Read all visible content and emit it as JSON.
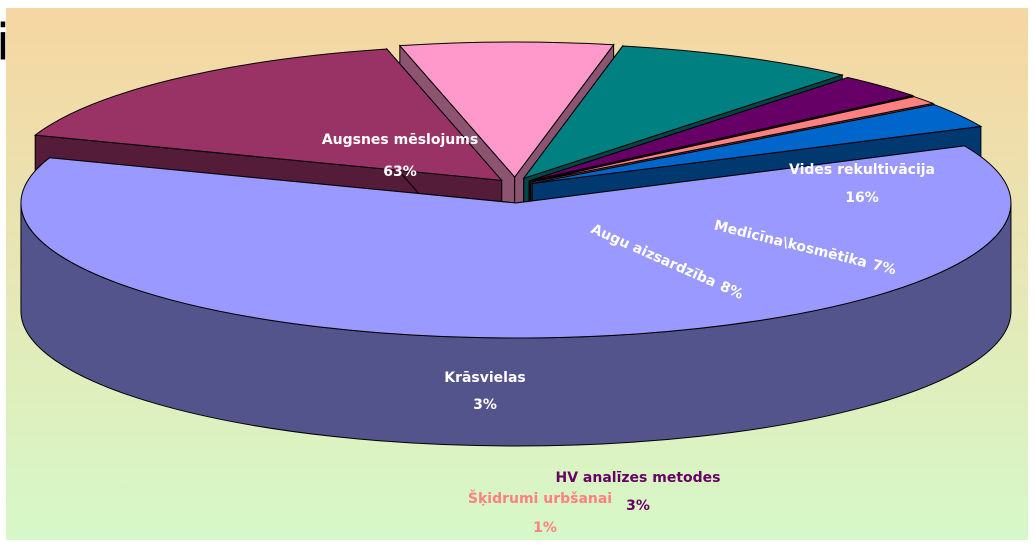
{
  "chart_data": {
    "type": "pie",
    "title": "i",
    "categories": [
      "Augsnes mēslojums",
      "Vides rekultivācija",
      "Medicīna\\kosmētika",
      "Augu aizsardzība",
      "HV analīzes metodes",
      "Šķidrumi urbšanai",
      "Krāsvielas"
    ],
    "values": [
      63,
      16,
      7,
      8,
      3,
      1,
      3
    ],
    "value_labels": [
      "63%",
      "16%",
      "7%",
      "8%",
      "3%",
      "1%",
      "3%"
    ],
    "colors": [
      "#9999ff",
      "#993366",
      "#ff99cc",
      "#008080",
      "#660066",
      "#ff8080",
      "#0066cc"
    ]
  }
}
